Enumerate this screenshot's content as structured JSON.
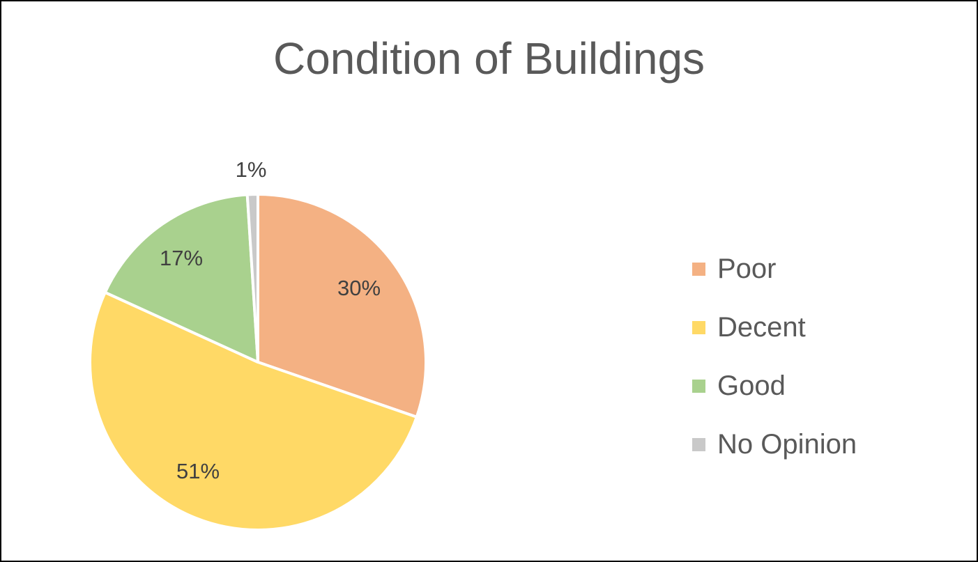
{
  "chart_data": {
    "type": "pie",
    "title": "Condition of Buildings",
    "categories": [
      "Poor",
      "Decent",
      "Good",
      "No Opinion"
    ],
    "values": [
      30,
      51,
      17,
      1
    ],
    "data_labels": [
      "30%",
      "51%",
      "17%",
      "1%"
    ],
    "colors": [
      "#F4B183",
      "#FFD966",
      "#A9D18E",
      "#C9C9C9"
    ],
    "legend_position": "right",
    "start_angle_degrees": 0,
    "direction": "clockwise"
  }
}
